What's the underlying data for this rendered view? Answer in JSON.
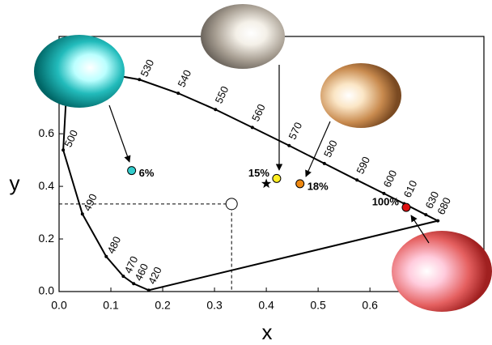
{
  "chart_data": {
    "type": "scatter",
    "x_label": "x",
    "y_label": "y",
    "xlim": [
      0,
      0.82
    ],
    "ylim": [
      0,
      0.97
    ],
    "xticks": [
      {
        "value": 0,
        "label": "0.0"
      },
      {
        "value": 0.1,
        "label": "0.1"
      },
      {
        "value": 0.2,
        "label": "0.2"
      },
      {
        "value": 0.3,
        "label": "0.3"
      },
      {
        "value": 0.4,
        "label": "0.4"
      },
      {
        "value": 0.5,
        "label": "0.5"
      },
      {
        "value": 0.6,
        "label": "0.6"
      }
    ],
    "yticks": [
      {
        "value": 0,
        "label": "0.0"
      },
      {
        "value": 0.2,
        "label": "0.2"
      },
      {
        "value": 0.4,
        "label": "0.4"
      },
      {
        "value": 0.6,
        "label": "0.6"
      }
    ],
    "locus": {
      "labels": [
        "420",
        "460",
        "470",
        "480",
        "490",
        "500",
        null,
        null,
        "530",
        "540",
        "550",
        "560",
        "570",
        "580",
        "590",
        "600",
        "610",
        "630",
        "680"
      ],
      "x": [
        0.173,
        0.144,
        0.124,
        0.091,
        0.045,
        0.008,
        0.014,
        0.074,
        0.155,
        0.23,
        0.302,
        0.373,
        0.444,
        0.512,
        0.575,
        0.627,
        0.666,
        0.708,
        0.731
      ],
      "y": [
        0.005,
        0.03,
        0.058,
        0.133,
        0.295,
        0.538,
        0.75,
        0.834,
        0.806,
        0.754,
        0.692,
        0.624,
        0.555,
        0.487,
        0.424,
        0.373,
        0.334,
        0.292,
        0.269
      ],
      "color": "#000"
    },
    "points": [
      {
        "label": "6%",
        "x": 0.14,
        "y": 0.46,
        "color": "#33cccc",
        "marker": "circle"
      },
      {
        "label": "15%",
        "x": 0.42,
        "y": 0.43,
        "color": "#ffee22",
        "marker": "circle"
      },
      {
        "label": "18%",
        "x": 0.465,
        "y": 0.41,
        "color": "#ee8811",
        "marker": "circle"
      },
      {
        "label": "100%",
        "x": 0.67,
        "y": 0.32,
        "color": "#dd1111",
        "marker": "circle"
      },
      {
        "x": 0.4,
        "y": 0.41,
        "color": "#000000",
        "marker": "star"
      },
      {
        "x": 0.333,
        "y": 0.333,
        "color": "#ffffff",
        "marker": "circle",
        "guides": true
      }
    ]
  }
}
